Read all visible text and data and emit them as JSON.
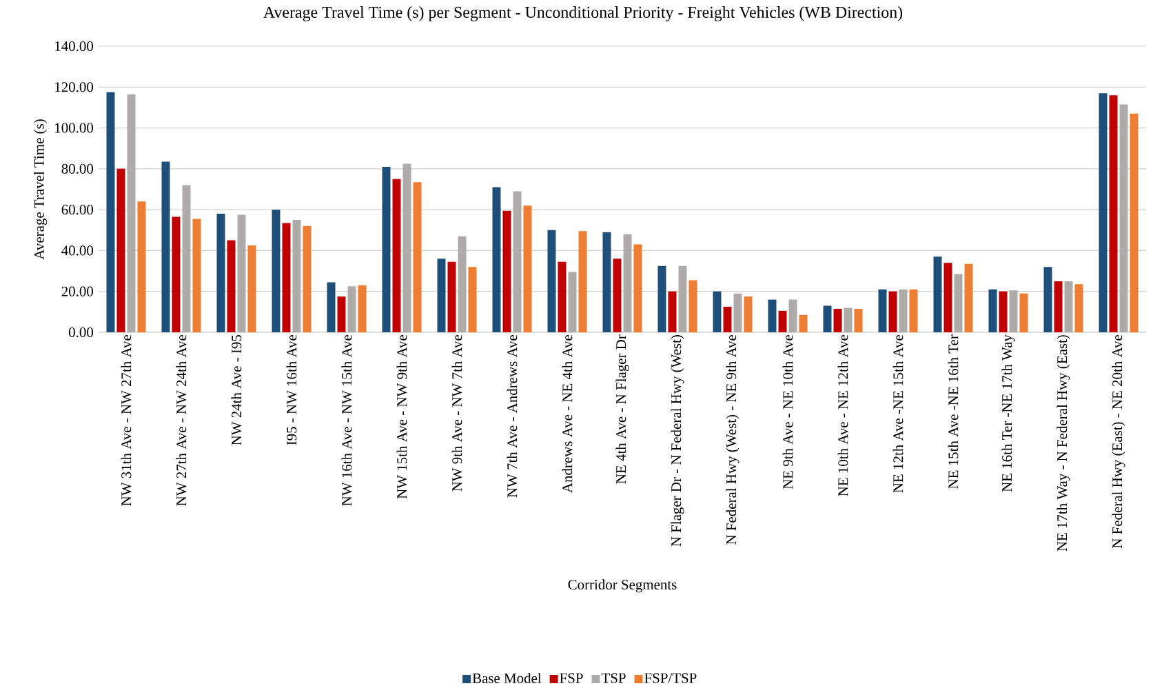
{
  "chart_data": {
    "type": "bar",
    "title": "Average Travel Time (s) per Segment - Unconditional Priority - Freight Vehicles  (WB Direction)",
    "xlabel": "Corridor Segments",
    "ylabel": "Average Travel Time (s)",
    "categories": [
      "NW 31th Ave - NW 27th Ave",
      "NW 27th Ave - NW 24th Ave",
      "NW 24th Ave - I95",
      "I95 - NW 16th Ave",
      "NW 16th Ave - NW 15th Ave",
      "NW 15th Ave - NW 9th Ave",
      "NW 9th Ave - NW 7th Ave",
      "NW 7th Ave - Andrews Ave",
      "Andrews Ave - NE 4th Ave",
      "NE 4th Ave - N Flager Dr",
      "N Flager Dr - N Federal Hwy (West)",
      "N Federal Hwy (West) - NE 9th Ave",
      "NE 9th Ave - NE 10th Ave",
      "NE 10th Ave - NE 12th Ave",
      "NE 12th Ave -NE 15th Ave",
      "NE 15th Ave -NE 16th Ter",
      "NE 16th Ter -NE 17th Way",
      "NE 17th Way - N Federal Hwy (East)",
      "N Federal Hwy (East) - NE 20th Ave"
    ],
    "series": [
      {
        "name": "Base Model",
        "color": "#1f4e79",
        "values": [
          117.5,
          83.5,
          58,
          60,
          24.5,
          81,
          36,
          71,
          50,
          49,
          32.5,
          20,
          16,
          13,
          21,
          37,
          21,
          32,
          117
        ]
      },
      {
        "name": "FSP",
        "color": "#c00000",
        "values": [
          80,
          56.5,
          45,
          53.5,
          17.5,
          75,
          34.5,
          59.5,
          34.5,
          36,
          20,
          12.5,
          10.5,
          11.5,
          20,
          34,
          20,
          25,
          116
        ]
      },
      {
        "name": "TSP",
        "color": "#afabab",
        "values": [
          116.5,
          72,
          57.5,
          55,
          22.5,
          82.5,
          47,
          69,
          29.5,
          48,
          32.5,
          19,
          16,
          12,
          21,
          28.5,
          20.5,
          25,
          111.5
        ]
      },
      {
        "name": "FSP/TSP",
        "color": "#ed7d31",
        "values": [
          64,
          55.5,
          42.5,
          52,
          23,
          73.5,
          32,
          62,
          49.5,
          43,
          25.5,
          17.5,
          8.5,
          11.5,
          21,
          33.5,
          19,
          23.5,
          107
        ]
      }
    ],
    "ylim": [
      0,
      140
    ],
    "yticks": [
      {
        "value": 0,
        "label": "0.00"
      },
      {
        "value": 20,
        "label": "20.00"
      },
      {
        "value": 40,
        "label": "40.00"
      },
      {
        "value": 60,
        "label": "60.00"
      },
      {
        "value": 80,
        "label": "80.00"
      },
      {
        "value": 100,
        "label": "100.00"
      },
      {
        "value": 120,
        "label": "120.00"
      },
      {
        "value": 140,
        "label": "140.00"
      }
    ],
    "grid": "y",
    "legend": "bottom"
  }
}
